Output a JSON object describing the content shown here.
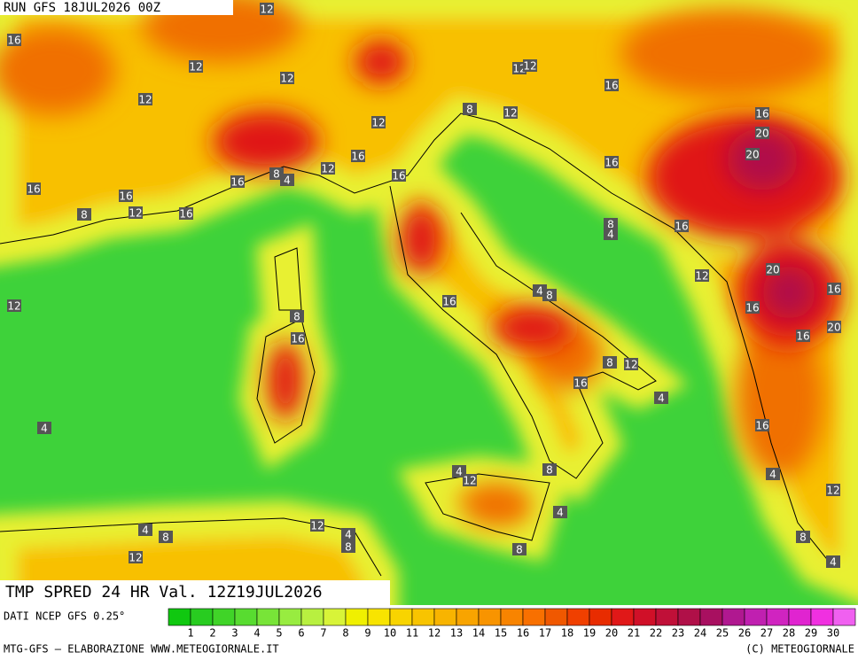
{
  "header": {
    "run": "RUN GFS 18JUL2026 00Z"
  },
  "map": {
    "title": "TMP SPRED 24 HR Val. 12Z19JUL2026",
    "contour_labels": [
      12,
      16,
      12,
      12,
      12,
      12,
      16,
      12,
      8,
      12,
      12,
      16,
      20,
      20,
      16,
      12,
      16,
      8,
      4,
      16,
      16,
      16,
      16,
      12,
      16,
      8,
      8,
      4,
      16,
      20,
      12,
      16,
      12,
      4,
      8,
      16,
      16,
      8,
      16,
      16,
      20,
      8,
      12,
      16,
      4,
      4,
      16,
      4,
      4,
      12,
      8,
      12,
      4,
      12,
      4,
      8,
      4,
      8,
      12,
      8,
      8,
      4
    ]
  },
  "colorbar": {
    "source": "DATI NCEP GFS 0.25°",
    "values": [
      1,
      2,
      3,
      4,
      5,
      6,
      7,
      8,
      9,
      10,
      11,
      12,
      13,
      14,
      15,
      16,
      17,
      18,
      19,
      20,
      21,
      22,
      23,
      24,
      25,
      26,
      27,
      28,
      29,
      30
    ],
    "colors": [
      "#10c810",
      "#28cc20",
      "#40d428",
      "#58dc30",
      "#78e438",
      "#98ec40",
      "#b8f040",
      "#d8f438",
      "#f0f000",
      "#f8e400",
      "#f8d400",
      "#f8c400",
      "#f8b400",
      "#f8a400",
      "#f89400",
      "#f88400",
      "#f87000",
      "#f05800",
      "#f04000",
      "#e82c00",
      "#e01818",
      "#d01028",
      "#c01038",
      "#b01048",
      "#a81060",
      "#b01890",
      "#c020b0",
      "#d024c0",
      "#e024d0",
      "#f030e0",
      "#f060f0"
    ]
  },
  "footer": {
    "left": "MTG-GFS — ELABORAZIONE WWW.METEOGIORNALE.IT",
    "right": "(C) METEOGIORNALE"
  }
}
